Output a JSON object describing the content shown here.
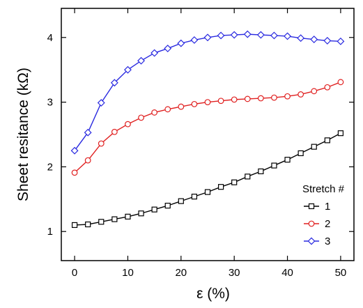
{
  "chart_data": {
    "type": "line",
    "xlabel": "ε (%)",
    "ylabel": "Sheet resitance (kΩ)",
    "xlim": [
      -2.5,
      52.5
    ],
    "ylim": [
      0.55,
      4.45
    ],
    "x_ticks": [
      0,
      10,
      20,
      30,
      40,
      50
    ],
    "y_ticks": [
      1,
      2,
      3,
      4
    ],
    "x_tick_labels": [
      "0",
      "10",
      "20",
      "30",
      "40",
      "50"
    ],
    "y_tick_labels": [
      "1",
      "2",
      "3",
      "4"
    ],
    "grid": false,
    "legend": {
      "title": "Stretch #",
      "position": "bottom-right"
    },
    "series": [
      {
        "name": "1",
        "color": "#000000",
        "marker": "square",
        "points": [
          [
            0,
            1.1
          ],
          [
            2.5,
            1.11
          ],
          [
            5,
            1.15
          ],
          [
            7.5,
            1.19
          ],
          [
            10,
            1.23
          ],
          [
            12.5,
            1.28
          ],
          [
            15,
            1.34
          ],
          [
            17.5,
            1.4
          ],
          [
            20,
            1.47
          ],
          [
            22.5,
            1.54
          ],
          [
            25,
            1.61
          ],
          [
            27.5,
            1.69
          ],
          [
            30,
            1.76
          ],
          [
            32.5,
            1.85
          ],
          [
            35,
            1.93
          ],
          [
            37.5,
            2.02
          ],
          [
            40,
            2.11
          ],
          [
            42.5,
            2.21
          ],
          [
            45,
            2.31
          ],
          [
            47.5,
            2.41
          ],
          [
            50,
            2.52
          ]
        ]
      },
      {
        "name": "2",
        "color": "#e02020",
        "marker": "circle",
        "points": [
          [
            0,
            1.91
          ],
          [
            2.5,
            2.1
          ],
          [
            5,
            2.36
          ],
          [
            7.5,
            2.54
          ],
          [
            10,
            2.66
          ],
          [
            12.5,
            2.76
          ],
          [
            15,
            2.84
          ],
          [
            17.5,
            2.89
          ],
          [
            20,
            2.93
          ],
          [
            22.5,
            2.97
          ],
          [
            25,
            3.0
          ],
          [
            27.5,
            3.02
          ],
          [
            30,
            3.04
          ],
          [
            32.5,
            3.05
          ],
          [
            35,
            3.06
          ],
          [
            37.5,
            3.07
          ],
          [
            40,
            3.09
          ],
          [
            42.5,
            3.12
          ],
          [
            45,
            3.17
          ],
          [
            47.5,
            3.23
          ],
          [
            50,
            3.31
          ]
        ]
      },
      {
        "name": "3",
        "color": "#2a2ae0",
        "marker": "diamond",
        "points": [
          [
            0,
            2.25
          ],
          [
            2.5,
            2.53
          ],
          [
            5,
            2.99
          ],
          [
            7.5,
            3.3
          ],
          [
            10,
            3.5
          ],
          [
            12.5,
            3.64
          ],
          [
            15,
            3.76
          ],
          [
            17.5,
            3.83
          ],
          [
            20,
            3.91
          ],
          [
            22.5,
            3.96
          ],
          [
            25,
            4.0
          ],
          [
            27.5,
            4.03
          ],
          [
            30,
            4.04
          ],
          [
            32.5,
            4.05
          ],
          [
            35,
            4.04
          ],
          [
            37.5,
            4.03
          ],
          [
            40,
            4.02
          ],
          [
            42.5,
            3.99
          ],
          [
            45,
            3.97
          ],
          [
            47.5,
            3.95
          ],
          [
            50,
            3.94
          ]
        ]
      }
    ]
  }
}
